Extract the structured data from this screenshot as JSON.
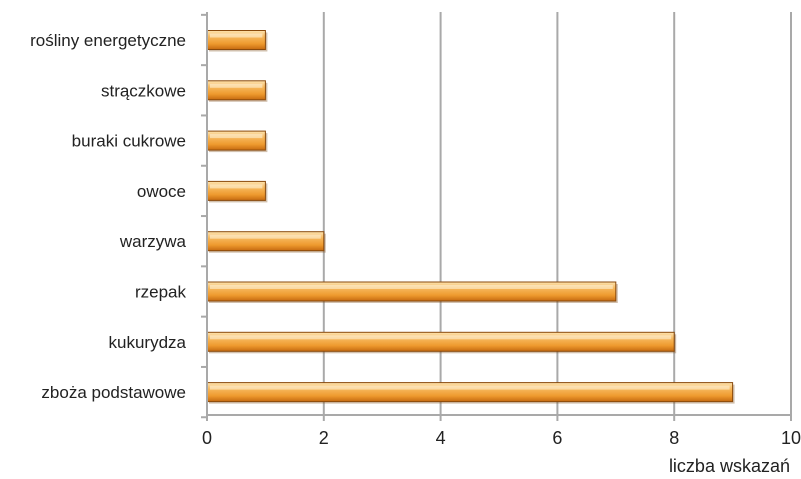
{
  "chart_data": {
    "type": "bar",
    "orientation": "horizontal",
    "categories": [
      "rośliny energetyczne",
      "strączkowe",
      "buraki cukrowe",
      "owoce",
      "warzywa",
      "rzepak",
      "kukurydza",
      "zboża podstawowe"
    ],
    "values": [
      1,
      1,
      1,
      1,
      2,
      7,
      8,
      9
    ],
    "xlabel": "liczba wskazań",
    "xlim": [
      0,
      10
    ],
    "xticks": [
      0,
      2,
      4,
      6,
      8,
      10
    ],
    "grid": "vertical",
    "legend": "none",
    "colors": {
      "bar_light": "#fbd38e",
      "bar_mid": "#f2a23c",
      "bar_dark": "#c56a10",
      "bar_edge": "#8a4a0c",
      "grid": "#a9a9a9"
    }
  }
}
